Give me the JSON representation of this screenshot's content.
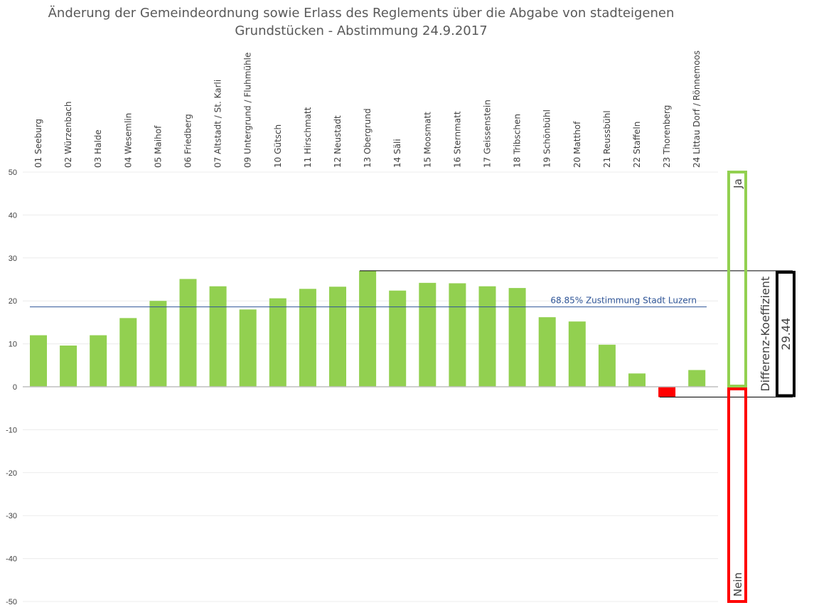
{
  "chart_data": {
    "type": "bar",
    "title_lines": [
      "Änderung der Gemeindeordnung sowie Erlass des Reglements über die Abgabe von stadteigenen",
      "Grundstücken - Abstimmung 24.9.2017"
    ],
    "ylim": [
      -50,
      50
    ],
    "yticks": [
      50,
      40,
      30,
      20,
      10,
      0,
      -10,
      -20,
      -30,
      -40,
      -50
    ],
    "grid": true,
    "categories": [
      "01 Seeburg",
      "02 Würzenbach",
      "03 Halde",
      "04 Wesemlin",
      "05 Maihof",
      "06 Friedberg",
      "07 Altstadt / St. Karli",
      "09 Untergrund / Fluhmühle",
      "10 Gütsch",
      "11 Hirschmatt",
      "12 Neustadt",
      "13 Obergrund",
      "14 Säli",
      "15 Moosmatt",
      "16 Sternmatt",
      "17 Geissenstein",
      "18 Tribschen",
      "19 Schönbühl",
      "20 Matthof",
      "21 Reussbühl",
      "22 Staffeln",
      "23 Thorenberg",
      "24 Littau Dorf / Rönnemoos"
    ],
    "values": [
      12,
      9.6,
      12,
      16,
      20,
      25.1,
      23.4,
      18,
      20.6,
      22.8,
      23.3,
      27,
      22.4,
      24.2,
      24.1,
      23.4,
      23,
      16.2,
      15.2,
      9.8,
      3.1,
      -2.4,
      3.9
    ],
    "colors": {
      "positive": "#92d050",
      "negative": "#ff0000",
      "reference": "#2f5597",
      "ja": "#92d050",
      "nein": "#ff0000",
      "coefficient": "#000000"
    },
    "reference_line": {
      "value": 18.6,
      "label": "68.85% Zustimmung Stadt Luzern"
    },
    "side_labels": {
      "ja": "Ja",
      "nein": "Nein"
    },
    "coefficient": {
      "label": "Differenz-Koeffizient",
      "value": "29.44",
      "range": [
        -2.4,
        27
      ]
    }
  }
}
